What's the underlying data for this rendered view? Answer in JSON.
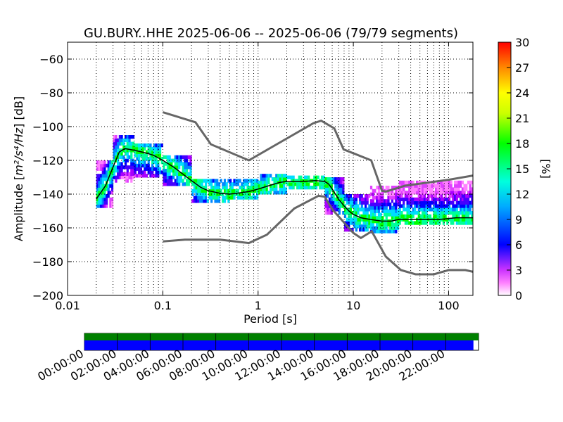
{
  "chart_data": {
    "type": "heatmap",
    "title": "GU.BURY..HHE   2025-06-06 -- 2025-06-06  (79/79 segments)",
    "xlabel": "Period [s]",
    "ylabel_prefix": "Amplitude [",
    "ylabel_math": "m²/s⁴/Hz",
    "ylabel_suffix": "] [dB]",
    "xscale": "log",
    "xlim": [
      0.01,
      180
    ],
    "ylim": [
      -200,
      -50
    ],
    "xticks": [
      0.01,
      0.1,
      1,
      10,
      100
    ],
    "xtick_labels": [
      "0.01",
      "0.1",
      "1",
      "10",
      "100"
    ],
    "yticks": [
      -200,
      -180,
      -160,
      -140,
      -120,
      -100,
      -80,
      -60
    ],
    "ytick_labels": [
      "−200",
      "−180",
      "−160",
      "−140",
      "−120",
      "−100",
      "−80",
      "−60"
    ],
    "grid": true,
    "colorbar": {
      "label": "[%]",
      "range": [
        0,
        30
      ],
      "ticks": [
        "0",
        "3",
        "6",
        "9",
        "12",
        "15",
        "18",
        "21",
        "24",
        "27",
        "30"
      ],
      "colormap": "pqlx"
    },
    "mean_curve": {
      "name": "mean",
      "color": "#000000",
      "points": [
        [
          0.02,
          -143
        ],
        [
          0.025,
          -135
        ],
        [
          0.03,
          -124
        ],
        [
          0.035,
          -115
        ],
        [
          0.04,
          -113
        ],
        [
          0.05,
          -114
        ],
        [
          0.06,
          -115
        ],
        [
          0.07,
          -116
        ],
        [
          0.08,
          -117
        ],
        [
          0.1,
          -120
        ],
        [
          0.13,
          -124
        ],
        [
          0.17,
          -129
        ],
        [
          0.2,
          -132
        ],
        [
          0.25,
          -136
        ],
        [
          0.3,
          -138
        ],
        [
          0.4,
          -139.5
        ],
        [
          0.5,
          -140
        ],
        [
          0.6,
          -139.5
        ],
        [
          0.8,
          -138.5
        ],
        [
          1,
          -137
        ],
        [
          1.3,
          -135
        ],
        [
          1.7,
          -133
        ],
        [
          2,
          -132.5
        ],
        [
          3,
          -132.5
        ],
        [
          4,
          -132
        ],
        [
          5,
          -132.5
        ],
        [
          5.5,
          -134
        ],
        [
          6,
          -137
        ],
        [
          7,
          -143
        ],
        [
          8,
          -147
        ],
        [
          9,
          -150
        ],
        [
          10,
          -152
        ],
        [
          12,
          -154
        ],
        [
          15,
          -155
        ],
        [
          20,
          -156
        ],
        [
          25,
          -156
        ],
        [
          30,
          -155
        ],
        [
          40,
          -155
        ],
        [
          60,
          -155
        ],
        [
          80,
          -155
        ],
        [
          120,
          -154
        ],
        [
          180,
          -154
        ]
      ]
    },
    "nlnm": {
      "name": "NLNM",
      "color": "#666666",
      "points": [
        [
          0.1,
          -168
        ],
        [
          0.17,
          -167
        ],
        [
          0.4,
          -167
        ],
        [
          0.8,
          -169
        ],
        [
          1.24,
          -164
        ],
        [
          2.4,
          -148.5
        ],
        [
          4.3,
          -141
        ],
        [
          5,
          -141.5
        ],
        [
          6,
          -149
        ],
        [
          10,
          -163
        ],
        [
          12,
          -166
        ],
        [
          15.6,
          -162
        ],
        [
          21.9,
          -177
        ],
        [
          31.6,
          -185
        ],
        [
          45,
          -187.5
        ],
        [
          70,
          -187.5
        ],
        [
          100,
          -185
        ],
        [
          150,
          -185
        ],
        [
          180,
          -186
        ]
      ]
    },
    "nhnm": {
      "name": "NHNM",
      "color": "#666666",
      "points": [
        [
          0.1,
          -91.5
        ],
        [
          0.22,
          -97.4
        ],
        [
          0.32,
          -110.5
        ],
        [
          0.8,
          -120
        ],
        [
          3.8,
          -98
        ],
        [
          4.6,
          -96.5
        ],
        [
          6.3,
          -101
        ],
        [
          7.9,
          -113.5
        ],
        [
          15.4,
          -120
        ],
        [
          20,
          -138
        ],
        [
          21.9,
          -138.5
        ],
        [
          35,
          -135
        ],
        [
          100,
          -131.5
        ],
        [
          180,
          -129
        ]
      ]
    },
    "density_bands": [
      {
        "x0": 0.02,
        "x1": 0.03,
        "y_low": -148,
        "y_high": -120
      },
      {
        "x0": 0.03,
        "x1": 0.05,
        "y_low": -133,
        "y_high": -106
      },
      {
        "x0": 0.05,
        "x1": 0.1,
        "y_low": -130,
        "y_high": -110
      },
      {
        "x0": 0.1,
        "x1": 0.2,
        "y_low": -135,
        "y_high": -117
      },
      {
        "x0": 0.2,
        "x1": 0.5,
        "y_low": -145,
        "y_high": -131
      },
      {
        "x0": 0.5,
        "x1": 1,
        "y_low": -143,
        "y_high": -132
      },
      {
        "x0": 1,
        "x1": 2,
        "y_low": -140,
        "y_high": -129
      },
      {
        "x0": 2,
        "x1": 5,
        "y_low": -137,
        "y_high": -129
      },
      {
        "x0": 5,
        "x1": 8,
        "y_low": -152,
        "y_high": -131
      },
      {
        "x0": 8,
        "x1": 15,
        "y_low": -162,
        "y_high": -140
      },
      {
        "x0": 15,
        "x1": 30,
        "y_low": -163,
        "y_high": -136
      },
      {
        "x0": 30,
        "x1": 180,
        "y_low": -158,
        "y_high": -133
      }
    ],
    "timeline": {
      "tick_labels": [
        "00:00:00",
        "02:00:00",
        "04:00:00",
        "06:00:00",
        "08:00:00",
        "10:00:00",
        "12:00:00",
        "14:00:00",
        "16:00:00",
        "18:00:00",
        "20:00:00",
        "22:00:00"
      ],
      "data_coverage_fraction": 1.0,
      "psd_coverage_fraction": 0.987,
      "data_color": "#008000",
      "psd_color": "#0000ff"
    }
  }
}
